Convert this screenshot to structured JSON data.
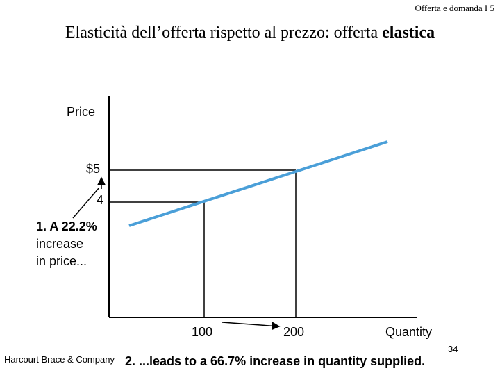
{
  "header": {
    "text": "Offerta e domanda I 5"
  },
  "title": {
    "prefix": "Elasticità dell’offerta rispetto al prezzo: offerta ",
    "emphasis": "elastica"
  },
  "diagram": {
    "y_axis_label": "Price",
    "x_axis_label": "Quantity",
    "price_high": "$5",
    "price_low": "4",
    "quantity_low": "100",
    "quantity_high": "200",
    "annotation_price": [
      "1. A 22.2%",
      "increase",
      "in price..."
    ],
    "supply_color": "#4a9fd8"
  },
  "footer": {
    "publisher": "Harcourt Brace & Company",
    "page_number": "34",
    "caption": "2. ...leads to a 66.7% increase in quantity supplied."
  }
}
